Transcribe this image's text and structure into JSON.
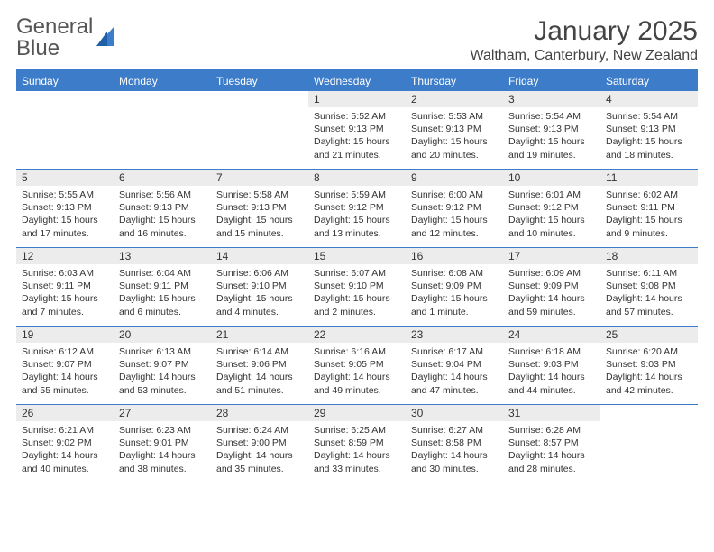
{
  "logo": {
    "text1": "General",
    "text2": "Blue"
  },
  "title": "January 2025",
  "location": "Waltham, Canterbury, New Zealand",
  "colors": {
    "accent": "#3d7cc9",
    "header_bg": "#3d7cc9",
    "daynum_bg": "#ececec"
  },
  "weekdays": [
    "Sunday",
    "Monday",
    "Tuesday",
    "Wednesday",
    "Thursday",
    "Friday",
    "Saturday"
  ],
  "calendar": {
    "first_weekday_index": 3,
    "num_days": 31,
    "days": [
      {
        "n": 1,
        "sunrise": "5:52 AM",
        "sunset": "9:13 PM",
        "daylight": "15 hours and 21 minutes."
      },
      {
        "n": 2,
        "sunrise": "5:53 AM",
        "sunset": "9:13 PM",
        "daylight": "15 hours and 20 minutes."
      },
      {
        "n": 3,
        "sunrise": "5:54 AM",
        "sunset": "9:13 PM",
        "daylight": "15 hours and 19 minutes."
      },
      {
        "n": 4,
        "sunrise": "5:54 AM",
        "sunset": "9:13 PM",
        "daylight": "15 hours and 18 minutes."
      },
      {
        "n": 5,
        "sunrise": "5:55 AM",
        "sunset": "9:13 PM",
        "daylight": "15 hours and 17 minutes."
      },
      {
        "n": 6,
        "sunrise": "5:56 AM",
        "sunset": "9:13 PM",
        "daylight": "15 hours and 16 minutes."
      },
      {
        "n": 7,
        "sunrise": "5:58 AM",
        "sunset": "9:13 PM",
        "daylight": "15 hours and 15 minutes."
      },
      {
        "n": 8,
        "sunrise": "5:59 AM",
        "sunset": "9:12 PM",
        "daylight": "15 hours and 13 minutes."
      },
      {
        "n": 9,
        "sunrise": "6:00 AM",
        "sunset": "9:12 PM",
        "daylight": "15 hours and 12 minutes."
      },
      {
        "n": 10,
        "sunrise": "6:01 AM",
        "sunset": "9:12 PM",
        "daylight": "15 hours and 10 minutes."
      },
      {
        "n": 11,
        "sunrise": "6:02 AM",
        "sunset": "9:11 PM",
        "daylight": "15 hours and 9 minutes."
      },
      {
        "n": 12,
        "sunrise": "6:03 AM",
        "sunset": "9:11 PM",
        "daylight": "15 hours and 7 minutes."
      },
      {
        "n": 13,
        "sunrise": "6:04 AM",
        "sunset": "9:11 PM",
        "daylight": "15 hours and 6 minutes."
      },
      {
        "n": 14,
        "sunrise": "6:06 AM",
        "sunset": "9:10 PM",
        "daylight": "15 hours and 4 minutes."
      },
      {
        "n": 15,
        "sunrise": "6:07 AM",
        "sunset": "9:10 PM",
        "daylight": "15 hours and 2 minutes."
      },
      {
        "n": 16,
        "sunrise": "6:08 AM",
        "sunset": "9:09 PM",
        "daylight": "15 hours and 1 minute."
      },
      {
        "n": 17,
        "sunrise": "6:09 AM",
        "sunset": "9:09 PM",
        "daylight": "14 hours and 59 minutes."
      },
      {
        "n": 18,
        "sunrise": "6:11 AM",
        "sunset": "9:08 PM",
        "daylight": "14 hours and 57 minutes."
      },
      {
        "n": 19,
        "sunrise": "6:12 AM",
        "sunset": "9:07 PM",
        "daylight": "14 hours and 55 minutes."
      },
      {
        "n": 20,
        "sunrise": "6:13 AM",
        "sunset": "9:07 PM",
        "daylight": "14 hours and 53 minutes."
      },
      {
        "n": 21,
        "sunrise": "6:14 AM",
        "sunset": "9:06 PM",
        "daylight": "14 hours and 51 minutes."
      },
      {
        "n": 22,
        "sunrise": "6:16 AM",
        "sunset": "9:05 PM",
        "daylight": "14 hours and 49 minutes."
      },
      {
        "n": 23,
        "sunrise": "6:17 AM",
        "sunset": "9:04 PM",
        "daylight": "14 hours and 47 minutes."
      },
      {
        "n": 24,
        "sunrise": "6:18 AM",
        "sunset": "9:03 PM",
        "daylight": "14 hours and 44 minutes."
      },
      {
        "n": 25,
        "sunrise": "6:20 AM",
        "sunset": "9:03 PM",
        "daylight": "14 hours and 42 minutes."
      },
      {
        "n": 26,
        "sunrise": "6:21 AM",
        "sunset": "9:02 PM",
        "daylight": "14 hours and 40 minutes."
      },
      {
        "n": 27,
        "sunrise": "6:23 AM",
        "sunset": "9:01 PM",
        "daylight": "14 hours and 38 minutes."
      },
      {
        "n": 28,
        "sunrise": "6:24 AM",
        "sunset": "9:00 PM",
        "daylight": "14 hours and 35 minutes."
      },
      {
        "n": 29,
        "sunrise": "6:25 AM",
        "sunset": "8:59 PM",
        "daylight": "14 hours and 33 minutes."
      },
      {
        "n": 30,
        "sunrise": "6:27 AM",
        "sunset": "8:58 PM",
        "daylight": "14 hours and 30 minutes."
      },
      {
        "n": 31,
        "sunrise": "6:28 AM",
        "sunset": "8:57 PM",
        "daylight": "14 hours and 28 minutes."
      }
    ]
  },
  "labels": {
    "sunrise": "Sunrise:",
    "sunset": "Sunset:",
    "daylight": "Daylight:"
  }
}
